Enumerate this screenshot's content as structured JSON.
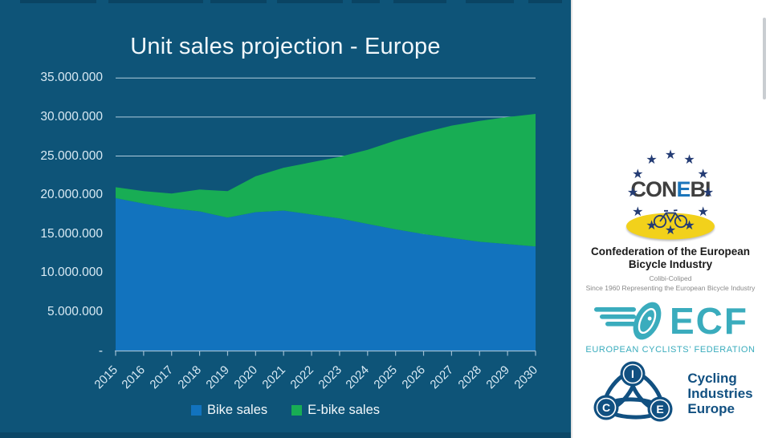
{
  "colors": {
    "slide_bg": "#0E5478",
    "panel_bg": "#FFFFFF",
    "area_bike": "#1273BE",
    "area_ebike": "#18AD54",
    "grid": "#AFCBDC",
    "axis_line": "#9DBDD2",
    "axis_text": "#D9EAF4",
    "title_text": "#F0F7FB",
    "conebi_navy": "#243C74",
    "conebi_yellow": "#F2D11B",
    "conebi_dark": "#3F3F3F",
    "conebi_blue": "#1B75BB",
    "ecf_teal": "#3AACBD",
    "cie_navy": "#115081",
    "scrollbar": "#C9CDD1"
  },
  "chart_data": {
    "type": "area",
    "stacked": true,
    "title": "Unit sales projection - Europe",
    "categories": [
      "2015",
      "2016",
      "2017",
      "2018",
      "2019",
      "2020",
      "2021",
      "2022",
      "2023",
      "2024",
      "2025",
      "2026",
      "2027",
      "2028",
      "2029",
      "2030"
    ],
    "series": [
      {
        "name": "Bike sales",
        "color": "#1273BE",
        "values": [
          19600000,
          18900000,
          18300000,
          17900000,
          17100000,
          17800000,
          18000000,
          17500000,
          17000000,
          16300000,
          15600000,
          15000000,
          14500000,
          14000000,
          13700000,
          13400000
        ]
      },
      {
        "name": "E-bike sales",
        "color": "#18AD54",
        "values": [
          1400000,
          1600000,
          1900000,
          2800000,
          3400000,
          4600000,
          5500000,
          6700000,
          7900000,
          9500000,
          11400000,
          13000000,
          14400000,
          15500000,
          16300000,
          17000000
        ]
      }
    ],
    "xlabel": "",
    "ylabel": "",
    "ylim": [
      0,
      35000000
    ],
    "ytick_interval": 5000000,
    "y_tick_labels": [
      "-",
      "5.000.000",
      "10.000.000",
      "15.000.000",
      "20.000.000",
      "25.000.000",
      "30.000.000",
      "35.000.000"
    ],
    "gridlines": true,
    "legend_position": "bottom"
  },
  "right_panel": {
    "conebi": {
      "letters": [
        {
          "ch": "C",
          "color": "#3F3F3F"
        },
        {
          "ch": "O",
          "color": "#3F3F3F"
        },
        {
          "ch": "N",
          "color": "#3F3F3F"
        },
        {
          "ch": "E",
          "color": "#1B75BB"
        },
        {
          "ch": "B",
          "color": "#3F3F3F"
        },
        {
          "ch": "I",
          "color": "#3F3F3F"
        }
      ],
      "star_icon": "eu-star-icon",
      "name_line1": "Confederation of the European",
      "name_line2": "Bicycle Industry",
      "sub1": "Colibi-Coliped",
      "sub2": "Since 1960 Representing the European Bicycle Industry"
    },
    "ecf": {
      "acronym": "ECF",
      "name": "EUROPEAN CYCLISTS’ FEDERATION"
    },
    "cie": {
      "letters": [
        "I",
        "C",
        "E"
      ],
      "name_line1": "Cycling",
      "name_line2": "Industries",
      "name_line3": "Europe"
    }
  }
}
